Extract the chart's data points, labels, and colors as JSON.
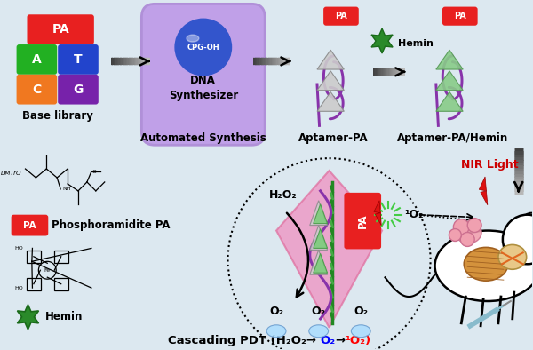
{
  "bg_color": "#dce8f0",
  "base_library_label": "Base library",
  "automated_synthesis_label": "Automated Synthesis",
  "aptamer_pa_label": "Aptamer-PA",
  "aptamer_pa_hemin_label": "Aptamer-PA/Hemin",
  "phosphoramidite_label": "Phosphoramidite PA",
  "hemin_label": "Hemin",
  "nir_label": "NIR Light",
  "h2o2_label": "H₂O₂",
  "o2_label": "O₂",
  "singlet_o2_label": "¹O₂",
  "cpg_label": "CPG-OH",
  "dna_synth_label": "DNA\nSynthesizer",
  "hemin_step_label": "Hemin",
  "title_part1": "Cascading PDT (H",
  "title_sub1": "2",
  "title_part2": "O",
  "title_sub2": "2",
  "title_arr1": "→ ",
  "title_blue": "O₂",
  "title_arr2": "→ ",
  "title_red": "¹O₂",
  "title_end": ")",
  "box_pa_color": "#e82020",
  "box_a_color": "#22b022",
  "box_t_color": "#2244cc",
  "box_c_color": "#f07820",
  "box_g_color": "#7722aa",
  "dna_box_color": "#c0a0e8",
  "dna_box_edge": "#b090d8",
  "cpg_ball_color": "#3355cc",
  "helix_color": "#8833aa",
  "diamond_color": "#f090c0",
  "arrow_gray_dark": 0.25,
  "arrow_gray_light": 0.75
}
